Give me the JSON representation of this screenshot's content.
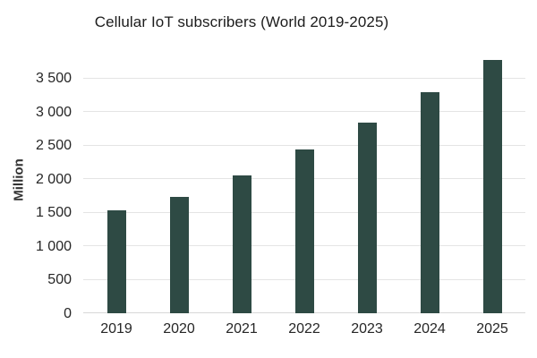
{
  "title": "Cellular IoT subscribers (World 2019-2025)",
  "colors": {
    "bar": "#2e4a44",
    "gridline": "#e4e4e4",
    "axis_line": "#d7d7d7",
    "title_text": "#1c1c1c",
    "tick_text": "#262626"
  },
  "chart_data": {
    "type": "bar",
    "title": "Cellular IoT subscribers (World 2019-2025)",
    "xlabel": "",
    "ylabel": "Million",
    "categories": [
      "2019",
      "2020",
      "2021",
      "2022",
      "2023",
      "2024",
      "2025"
    ],
    "values": [
      1540,
      1730,
      2060,
      2440,
      2840,
      3290,
      3770
    ],
    "ylim": [
      0,
      3900
    ],
    "yticks": [
      0,
      500,
      1000,
      1500,
      2000,
      2500,
      3000,
      3500
    ],
    "ytick_labels": [
      "0",
      "500",
      "1 000",
      "1 500",
      "2 000",
      "2 500",
      "3 000",
      "3 500"
    ],
    "grid": "horizontal",
    "legend": "none",
    "bar_color": "#2e4a44"
  }
}
